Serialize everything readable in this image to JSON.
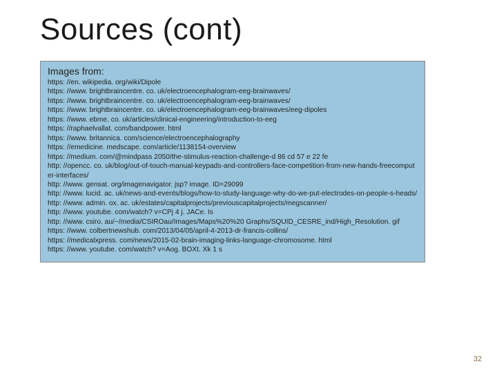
{
  "title": "Sources (cont)",
  "subheading": "Images from:",
  "urls": [
    "https: //en. wikipedia. org/wiki/Dipole",
    "https: //www. brightbraincentre. co. uk/electroencephalogram-eeg-brainwaves/",
    "https: //www. brightbraincentre. co. uk/electroencephalogram-eeg-brainwaves/",
    "https: //www. brightbraincentre. co. uk/electroencephalogram-eeg-brainwaves/eeg-dipoles",
    "https: //www. ebme. co. uk/articles/clinical-engineering/introduction-to-eeg",
    "https: //raphaelvallat. com/bandpower. html",
    "https: //www. britannica. com/science/electroencephalography",
    "https: //emedicine. medscape. com/article/1138154-overview",
    "https: //medium. com/@mindpass 2050/the-stimulus-reaction-challenge-d 86 cd 57 e 22 fe",
    "http: //opencc. co. uk/blog/out-of-touch-manual-keypads-and-controllers-face-competition-from-new-hands-freecomputer-interfaces/",
    "http: //www. gensat. org/imagenavigator. jsp? image. ID=29099",
    "http: //www. lucid. ac. uk/news-and-events/blogs/how-to-study-language-why-do-we-put-electrodes-on-people-s-heads/",
    "http: //www. admin. ox. ac. uk/estates/capitalprojects/previouscapitalprojects/megscanner/",
    "http: //www. youtube. com/watch? v=CPj 4 j. JACe. Is",
    "http: //www. csiro. au/~/media/CSIROau/Images/Maps%20%20 Graphs/SQUID_CESRE_ind/High_Resolution. gif",
    "https: //www. colbertnewshub. com/2013/04/05/april-4-2013-dr-francis-collins/",
    "https: //medicalxpress. com/news/2015-02-brain-imaging-links-language-chromosome. html",
    "https: //www. youtube. com/watch? v=Aog. BOXt. Xk 1 s"
  ],
  "page_number": "32",
  "colors": {
    "box_bg": "#9bc6dd",
    "text": "#222222",
    "title": "#1a1a1a",
    "page_num": "#8b6f47"
  }
}
